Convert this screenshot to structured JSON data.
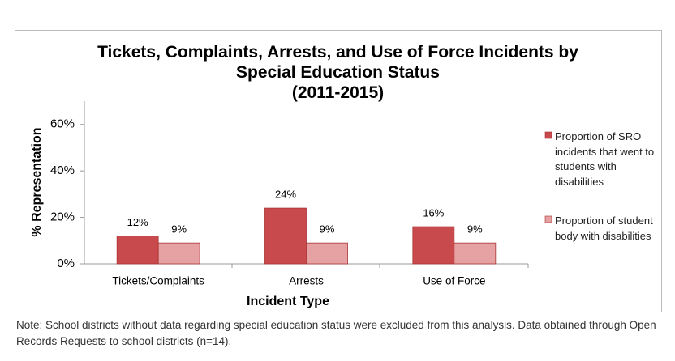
{
  "chart_data": {
    "type": "bar",
    "title": "Tickets, Complaints, Arrests, and Use of Force Incidents by Special Education Status",
    "subtitle": "(2011-2015)",
    "x_label": "Incident Type",
    "y_label": "% Representation",
    "categories": [
      "Tickets/Complaints",
      "Arrests",
      "Use of Force"
    ],
    "series": [
      {
        "name": "Proportion of SRO incidents that went to students with disabilities",
        "color": "#c94a4c",
        "values": [
          12,
          24,
          16
        ],
        "value_labels": [
          "12%",
          "24%",
          "16%"
        ]
      },
      {
        "name": "Proportion of student body with disabilities",
        "color": "#e6a2a2",
        "values": [
          9,
          9,
          9
        ],
        "value_labels": [
          "9%",
          "9%",
          "9%"
        ]
      }
    ],
    "ylim": [
      0,
      70
    ],
    "yticks": [
      {
        "value": 0,
        "label": "0%"
      },
      {
        "value": 20,
        "label": "20%"
      },
      {
        "value": 40,
        "label": "40%"
      },
      {
        "value": 60,
        "label": "60%"
      }
    ],
    "legend": "right",
    "note": "Note: School districts without data regarding special education status were excluded from this analysis. Data obtained through Open Records Requests to school districts (n=14)."
  }
}
